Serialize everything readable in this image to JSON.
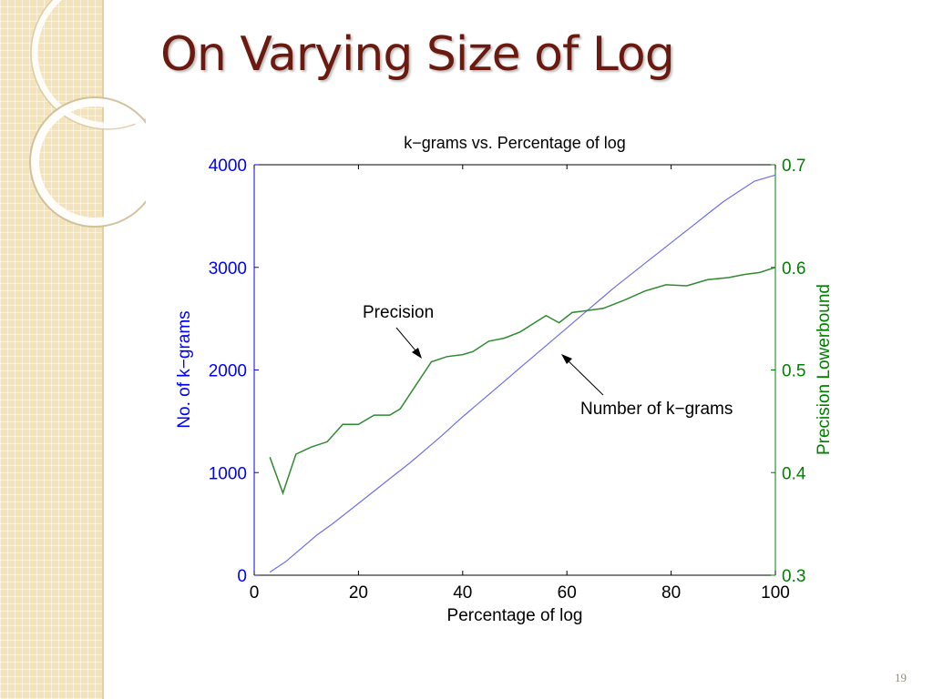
{
  "slide": {
    "title": "On Varying Size of Log",
    "page_number": "19"
  },
  "colors": {
    "sidebar": "#f2e3bd",
    "title": "#6b1a10",
    "left_axis": "#0000ff",
    "right_axis": "#007f00",
    "kgrams_line": "#6f6fe8",
    "precision_line": "#2f8a2f"
  },
  "chart_data": {
    "type": "line",
    "title": "k−grams vs. Percentage of log",
    "xlabel": "Percentage of log",
    "ylabel_left": "No. of k−grams",
    "ylabel_right": "Precision Lowerbound",
    "xlim": [
      0,
      100
    ],
    "ylim_left": [
      0,
      4000
    ],
    "ylim_right": [
      0.3,
      0.7
    ],
    "x_ticks": [
      "0",
      "20",
      "40",
      "60",
      "80",
      "100"
    ],
    "y_ticks_left": [
      "0",
      "1000",
      "2000",
      "3000",
      "4000"
    ],
    "y_ticks_right": [
      "0.3",
      "0.4",
      "0.5",
      "0.6",
      "0.7"
    ],
    "grid": false,
    "series": [
      {
        "name": "Number of k−grams",
        "axis": "left",
        "x": [
          3,
          6,
          9,
          12,
          15,
          18,
          21,
          24,
          27,
          30,
          33,
          36,
          39,
          42,
          45,
          48,
          51,
          54,
          57,
          60,
          63,
          66,
          69,
          72,
          75,
          78,
          81,
          84,
          87,
          90,
          93,
          96,
          100
        ],
        "values": [
          30,
          130,
          260,
          390,
          500,
          620,
          740,
          860,
          980,
          1100,
          1230,
          1360,
          1500,
          1630,
          1760,
          1890,
          2020,
          2150,
          2280,
          2410,
          2540,
          2670,
          2800,
          2920,
          3040,
          3160,
          3280,
          3400,
          3520,
          3640,
          3740,
          3840,
          3900
        ]
      },
      {
        "name": "Precision",
        "axis": "right",
        "x": [
          3,
          5.5,
          8,
          11,
          14,
          17,
          20,
          23,
          26,
          28,
          31,
          34,
          37,
          40,
          42,
          45,
          48,
          51,
          53.5,
          56,
          58.5,
          61,
          64,
          67,
          71,
          75,
          79,
          83,
          87,
          91,
          94,
          97,
          100
        ],
        "values": [
          0.415,
          0.38,
          0.418,
          0.425,
          0.43,
          0.447,
          0.447,
          0.456,
          0.456,
          0.462,
          0.485,
          0.508,
          0.513,
          0.515,
          0.518,
          0.528,
          0.531,
          0.537,
          0.545,
          0.553,
          0.546,
          0.556,
          0.558,
          0.56,
          0.568,
          0.577,
          0.583,
          0.582,
          0.588,
          0.59,
          0.593,
          0.595,
          0.6
        ]
      }
    ],
    "annotations": [
      {
        "text": "Precision",
        "target_series": "Precision"
      },
      {
        "text": "Number of k−grams",
        "target_series": "Number of k−grams"
      }
    ]
  }
}
